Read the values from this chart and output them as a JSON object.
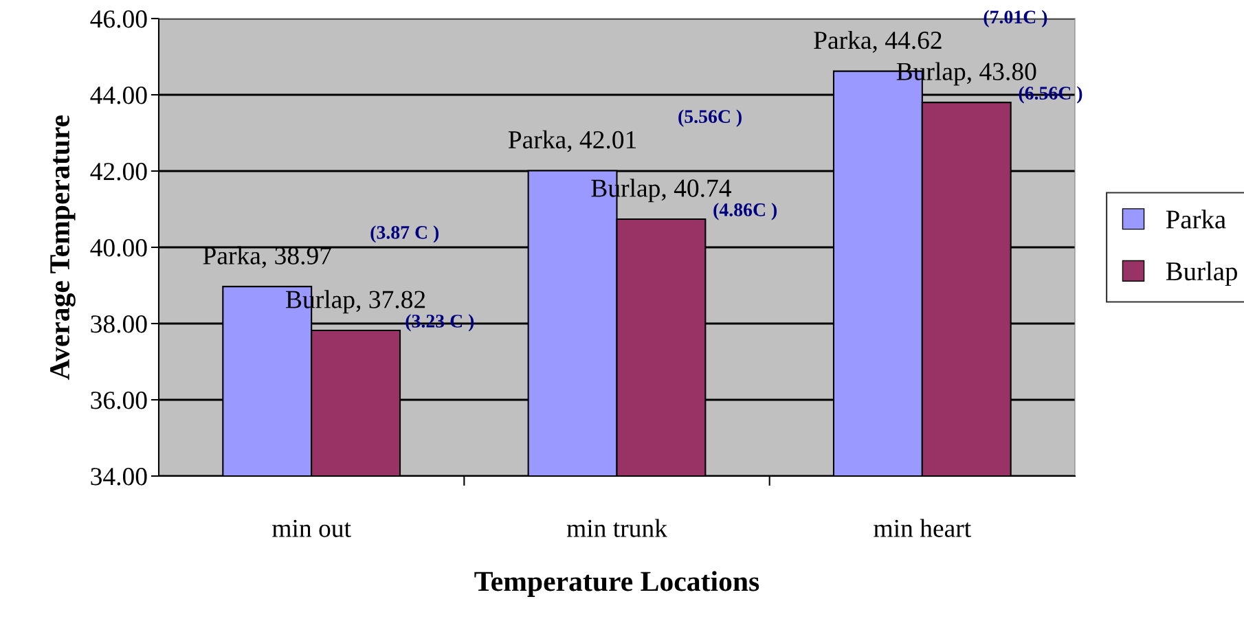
{
  "chart_data": {
    "type": "bar",
    "xlabel": "Temperature Locations",
    "ylabel": "Average Temperature",
    "categories": [
      "min out",
      "min trunk",
      "min heart"
    ],
    "series": [
      {
        "name": "Parka",
        "color": "#9999ff",
        "values": [
          38.97,
          42.01,
          44.62
        ],
        "value_labels": [
          "Parka, 38.97",
          "Parka, 42.01",
          "Parka, 44.62"
        ]
      },
      {
        "name": "Burlap",
        "color": "#993366",
        "values": [
          37.82,
          40.74,
          43.8
        ],
        "value_labels": [
          "Burlap, 37.82",
          "Burlap, 40.74",
          "Burlap, 43.80"
        ]
      }
    ],
    "ylim": [
      34,
      46
    ],
    "yticks": [
      {
        "value": 34,
        "label": "34.00"
      },
      {
        "value": 36,
        "label": "36.00"
      },
      {
        "value": 38,
        "label": "38.00"
      },
      {
        "value": 40,
        "label": "40.00"
      },
      {
        "value": 42,
        "label": "42.00"
      },
      {
        "value": 44,
        "label": "44.00"
      },
      {
        "value": 46,
        "label": "46.00"
      }
    ],
    "grid": "y",
    "legend": "right",
    "annotations": [
      "(3.87 C )",
      "(3.23 C )",
      "(5.56C )",
      "(4.86C )",
      "(7.01C )",
      "(6.56C )"
    ]
  }
}
